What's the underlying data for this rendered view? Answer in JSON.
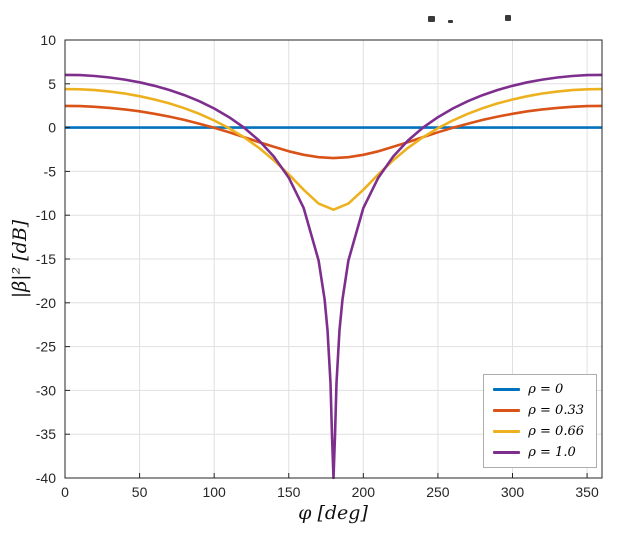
{
  "chart_data": {
    "type": "line",
    "title": "",
    "xlabel": "φ [deg]",
    "ylabel": "|β|² [dB]",
    "xlim": [
      0,
      360
    ],
    "ylim": [
      -40,
      10
    ],
    "xticks": [
      0,
      50,
      100,
      150,
      200,
      250,
      300,
      350
    ],
    "yticks": [
      10,
      5,
      0,
      -5,
      -10,
      -15,
      -20,
      -25,
      -30,
      -35,
      -40
    ],
    "grid": true,
    "grid_color": "#e0e0e0",
    "axes_color": "#262626",
    "legend_position": "lower right",
    "line_width": 2.6,
    "series": [
      {
        "name": "ρ = 0",
        "color": "#0072BD",
        "x": [
          0,
          360
        ],
        "y": [
          0,
          0
        ]
      },
      {
        "name": "ρ = 0.33",
        "color": "#D95319",
        "x": [
          0,
          10,
          20,
          30,
          40,
          50,
          60,
          70,
          80,
          90,
          100,
          110,
          120,
          130,
          140,
          150,
          160,
          170,
          180,
          190,
          200,
          210,
          220,
          230,
          240,
          250,
          260,
          270,
          280,
          290,
          300,
          310,
          320,
          330,
          340,
          350,
          360
        ],
        "y": [
          2.48,
          2.45,
          2.38,
          2.25,
          2.08,
          1.86,
          1.58,
          1.25,
          0.88,
          0.45,
          -0.02,
          -0.54,
          -1.09,
          -1.65,
          -2.19,
          -2.7,
          -3.11,
          -3.38,
          -3.48,
          -3.38,
          -3.11,
          -2.7,
          -2.19,
          -1.65,
          -1.09,
          -0.54,
          -0.02,
          0.45,
          0.88,
          1.25,
          1.58,
          1.86,
          2.08,
          2.25,
          2.38,
          2.45,
          2.48
        ]
      },
      {
        "name": "ρ = 0.66",
        "color": "#EDB120",
        "x": [
          0,
          10,
          20,
          30,
          40,
          50,
          60,
          70,
          80,
          90,
          100,
          110,
          120,
          130,
          140,
          150,
          160,
          170,
          180,
          190,
          200,
          210,
          220,
          230,
          240,
          250,
          260,
          270,
          280,
          290,
          300,
          310,
          320,
          330,
          340,
          350,
          360
        ],
        "y": [
          4.4,
          4.37,
          4.28,
          4.11,
          3.89,
          3.59,
          3.21,
          2.76,
          2.21,
          1.57,
          0.81,
          -0.07,
          -1.1,
          -2.31,
          -3.72,
          -5.34,
          -7.1,
          -8.68,
          -9.37,
          -8.68,
          -7.1,
          -5.34,
          -3.72,
          -2.31,
          -1.1,
          -0.07,
          0.81,
          1.57,
          2.21,
          2.76,
          3.21,
          3.59,
          3.89,
          4.11,
          4.28,
          4.37,
          4.4
        ]
      },
      {
        "name": "ρ = 1.0",
        "color": "#7E2F8E",
        "x": [
          0,
          10,
          20,
          30,
          40,
          50,
          60,
          70,
          80,
          90,
          100,
          110,
          120,
          130,
          140,
          150,
          160,
          170,
          174,
          176,
          178,
          179,
          180,
          181,
          182,
          184,
          186,
          190,
          200,
          210,
          220,
          230,
          240,
          250,
          260,
          270,
          280,
          290,
          300,
          310,
          320,
          330,
          340,
          350,
          360
        ],
        "y": [
          6.02,
          5.99,
          5.89,
          5.72,
          5.48,
          5.17,
          4.77,
          4.29,
          3.71,
          3.01,
          2.18,
          1.19,
          0.0,
          -1.46,
          -3.3,
          -5.72,
          -9.19,
          -15.17,
          -19.6,
          -23.12,
          -29.14,
          -35.16,
          -40,
          -35.16,
          -29.14,
          -23.12,
          -19.6,
          -15.17,
          -9.19,
          -5.72,
          -3.3,
          -1.46,
          0.0,
          1.19,
          2.18,
          3.01,
          3.71,
          4.29,
          4.77,
          5.17,
          5.48,
          5.72,
          5.89,
          5.99,
          6.02
        ]
      }
    ]
  }
}
